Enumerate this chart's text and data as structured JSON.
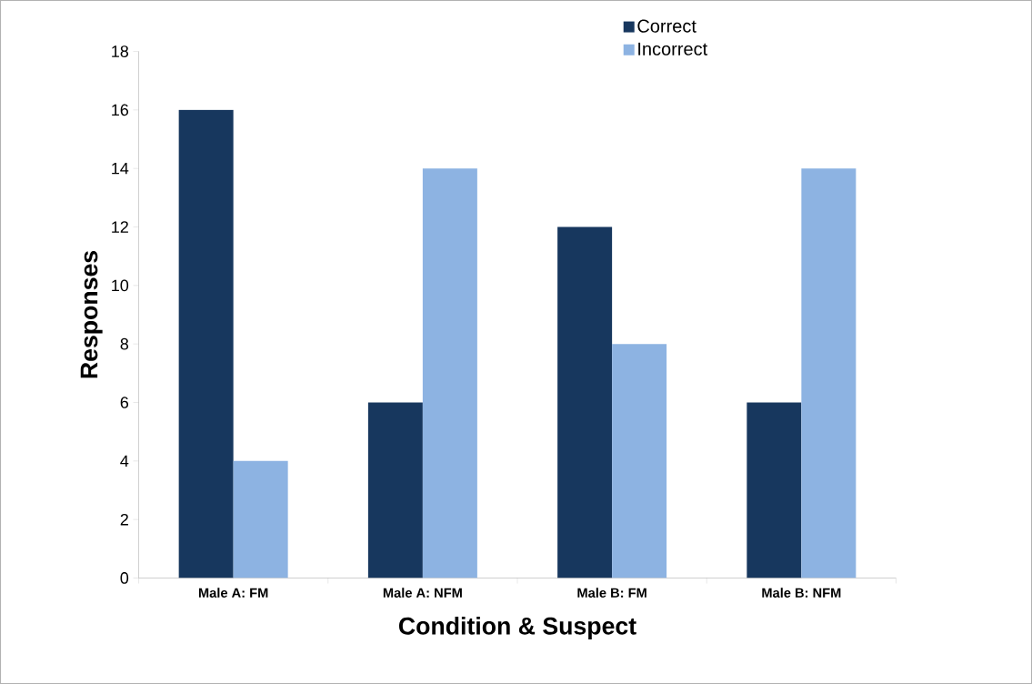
{
  "chart_data": {
    "type": "bar",
    "xlabel": "Condition & Suspect",
    "ylabel": "Responses",
    "categories": [
      "Male A: FM",
      "Male A: NFM",
      "Male B: FM",
      "Male B: NFM"
    ],
    "series": [
      {
        "name": "Correct",
        "color": "#17375e",
        "values": [
          16,
          6,
          12,
          6
        ]
      },
      {
        "name": "Incorrect",
        "color": "#8db3e2",
        "values": [
          4,
          14,
          8,
          14
        ]
      }
    ],
    "ylim": [
      0,
      18
    ],
    "yticks": [
      0,
      2,
      4,
      6,
      8,
      10,
      12,
      14,
      16,
      18
    ],
    "legend": "top right"
  }
}
